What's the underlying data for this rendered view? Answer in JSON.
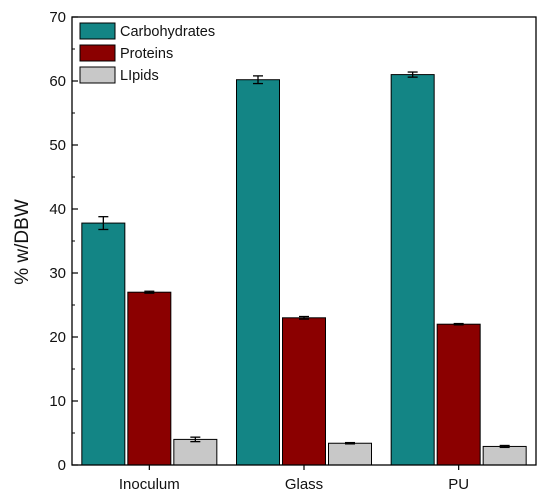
{
  "chart_data": {
    "type": "bar",
    "categories": [
      "Inoculum",
      "Glass",
      "PU"
    ],
    "series": [
      {
        "name": "Carbohydrates",
        "values": [
          37.8,
          60.2,
          61.0
        ],
        "errors": [
          1.0,
          0.6,
          0.4
        ],
        "color": "#138585"
      },
      {
        "name": "Proteins",
        "values": [
          27.0,
          23.0,
          22.0
        ],
        "errors": [
          0.15,
          0.2,
          0.1
        ],
        "color": "#8b0000"
      },
      {
        "name": "LIpids",
        "values": [
          4.0,
          3.4,
          2.9
        ],
        "errors": [
          0.35,
          0.1,
          0.15
        ],
        "color": "#c8c8c8"
      }
    ],
    "title": "",
    "xlabel": "",
    "ylabel": "% w/DBW",
    "ylim": [
      0,
      70
    ],
    "yticks": [
      0,
      10,
      20,
      30,
      40,
      50,
      60,
      70
    ],
    "legend": "top-left",
    "grid": false
  }
}
